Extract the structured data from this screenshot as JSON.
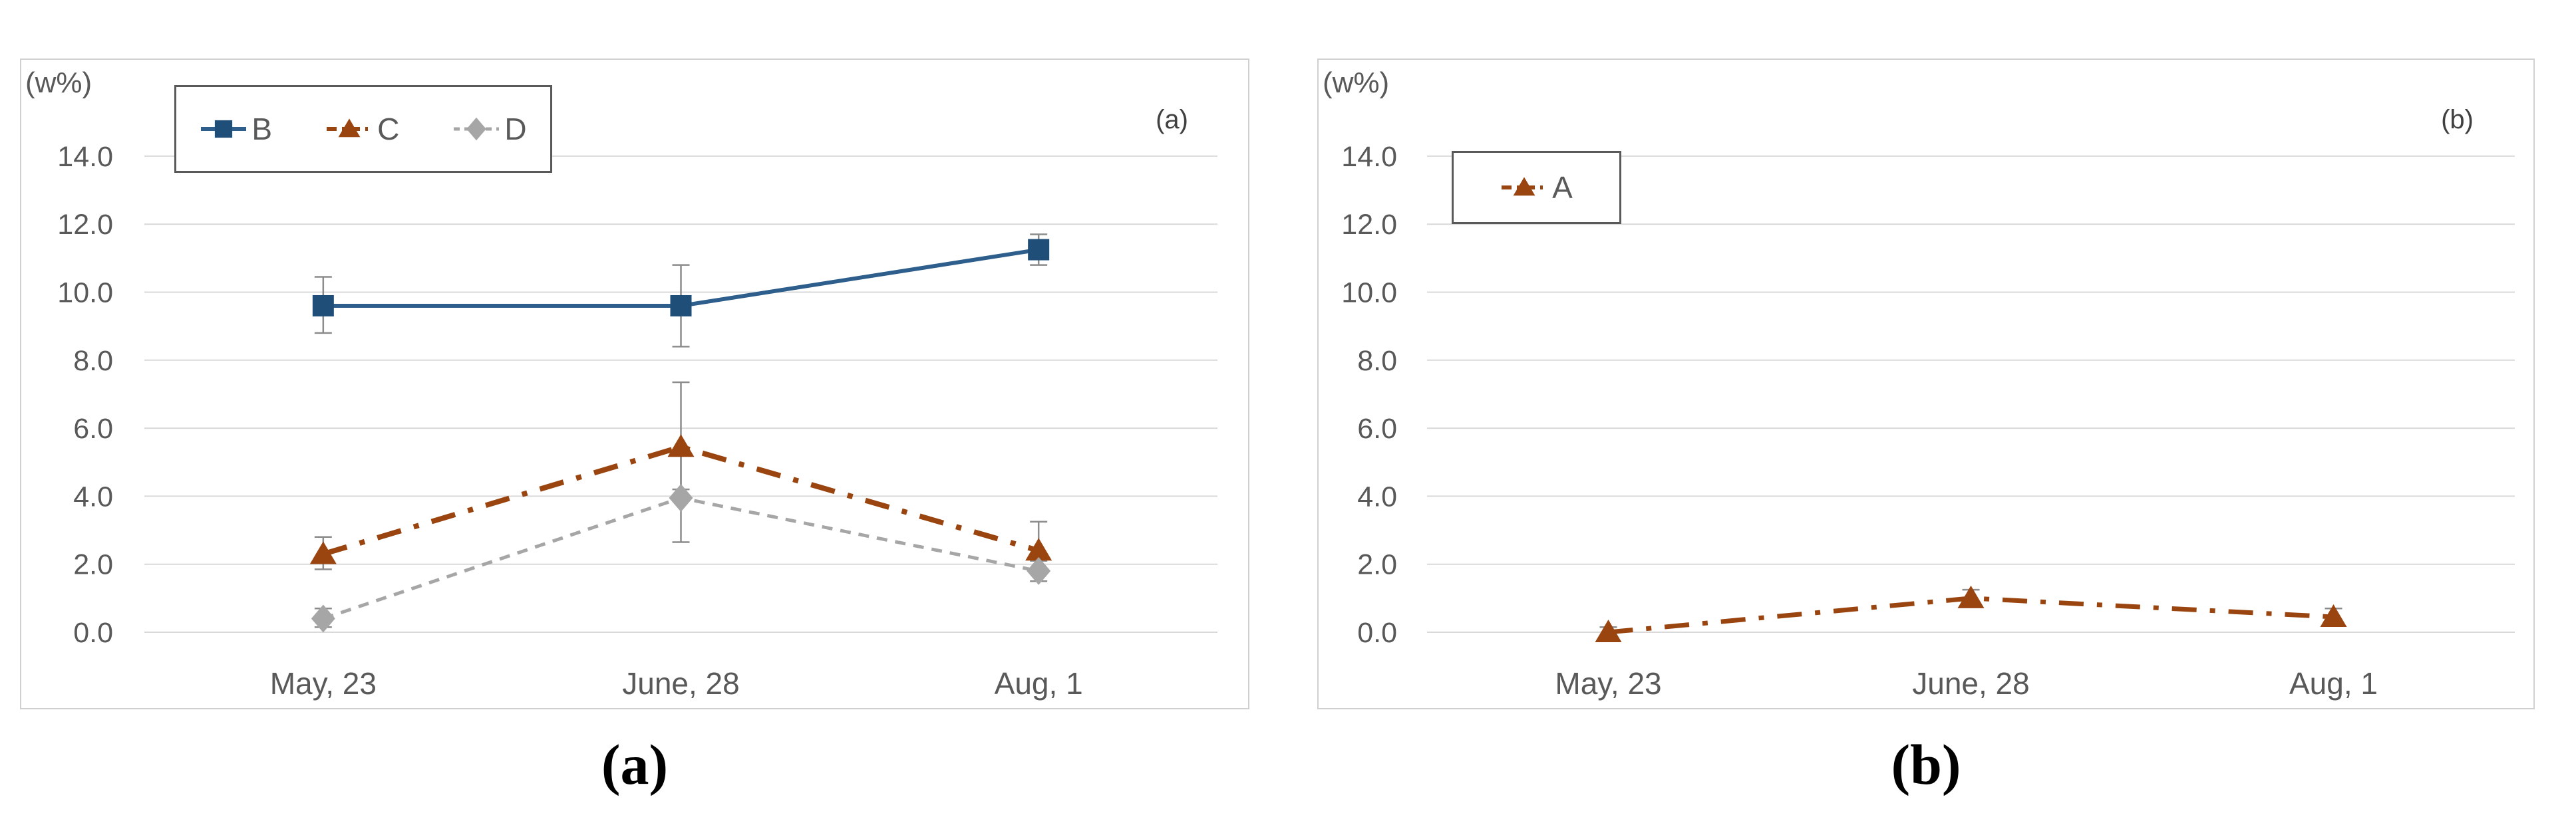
{
  "colors": {
    "background": "#FFFFFF",
    "gridline": "#D9D9D9",
    "chart_border": "#D0D0D0",
    "axis_text": "#595959",
    "legend_text": "#595959",
    "legend_border": "#595959",
    "error_bar": "#8C8C8C",
    "series_blue": "#1F4E79",
    "series_brown": "#9A4510",
    "series_gray": "#A6A6A6"
  },
  "chart_data": [
    {
      "id": "a",
      "type": "line",
      "corner_label": "(a)",
      "caption": "(a)",
      "y_axis_label": "(w%)",
      "categories": [
        "May, 23",
        "June, 28",
        "Aug, 1"
      ],
      "y_ticks": [
        "0.0",
        "2.0",
        "4.0",
        "6.0",
        "8.0",
        "10.0",
        "12.0",
        "14.0"
      ],
      "y_tick_values": [
        0,
        2,
        4,
        6,
        8,
        10,
        12,
        14
      ],
      "ylim": [
        0,
        16.8
      ],
      "grid": true,
      "legend_position": "inside-top-left",
      "series": [
        {
          "name": "B",
          "marker": "square",
          "line_style": "solid",
          "color": "#1F4E79",
          "line_color": "#2E5F8C",
          "line_width": 6,
          "values": [
            9.6,
            9.6,
            11.25
          ],
          "err_lo": [
            0.8,
            1.2,
            0.45
          ],
          "err_hi": [
            0.85,
            1.2,
            0.45
          ]
        },
        {
          "name": "C",
          "marker": "triangle",
          "line_style": "dashdot",
          "color": "#9A4510",
          "line_color": "#9A4510",
          "line_width": 8,
          "values": [
            2.3,
            5.45,
            2.4
          ],
          "err_lo": [
            0.45,
            1.25,
            0.3
          ],
          "err_hi": [
            0.5,
            1.9,
            0.85
          ]
        },
        {
          "name": "D",
          "marker": "diamond",
          "line_style": "dashed",
          "color": "#A6A6A6",
          "line_color": "#A6A6A6",
          "line_width": 5,
          "values": [
            0.4,
            3.95,
            1.8
          ],
          "err_lo": [
            0.25,
            1.3,
            0.3
          ],
          "err_hi": [
            0.3,
            1.3,
            0.35
          ]
        }
      ]
    },
    {
      "id": "b",
      "type": "line",
      "corner_label": "(b)",
      "caption": "(b)",
      "y_axis_label": "(w%)",
      "categories": [
        "May, 23",
        "June, 28",
        "Aug, 1"
      ],
      "y_ticks": [
        "0.0",
        "2.0",
        "4.0",
        "6.0",
        "8.0",
        "10.0",
        "12.0",
        "14.0"
      ],
      "y_tick_values": [
        0,
        2,
        4,
        6,
        8,
        10,
        12,
        14
      ],
      "ylim": [
        0,
        16.8
      ],
      "grid": true,
      "legend_position": "inside-top-left",
      "series": [
        {
          "name": "A",
          "marker": "triangle",
          "line_style": "dashdot",
          "color": "#9A4510",
          "line_color": "#9A4510",
          "line_width": 7,
          "values": [
            0.0,
            1.0,
            0.45
          ],
          "err_lo": [
            0.1,
            0.15,
            0.15
          ],
          "err_hi": [
            0.15,
            0.25,
            0.25
          ]
        }
      ]
    }
  ]
}
